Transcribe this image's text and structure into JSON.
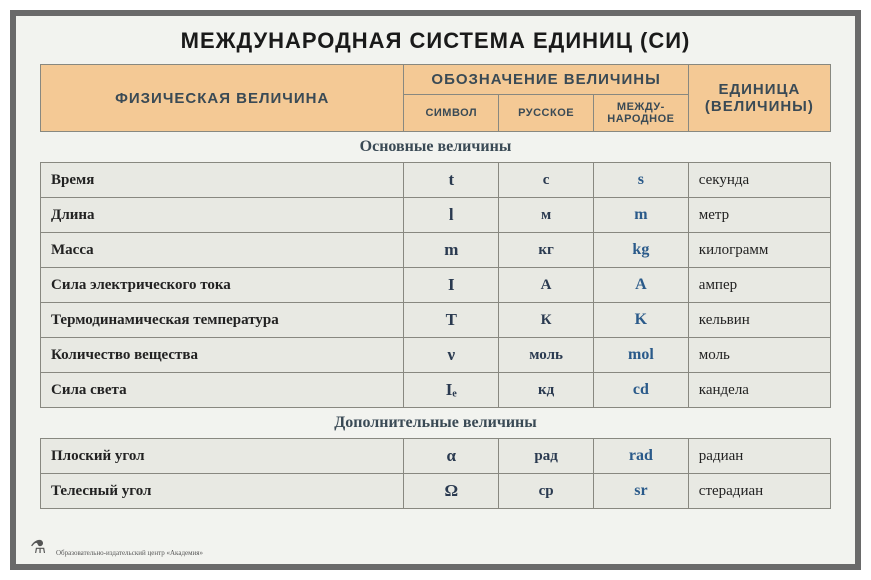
{
  "title": "МЕЖДУНАРОДНАЯ СИСТЕМА ЕДИНИЦ (СИ)",
  "colors": {
    "frame_border": "#6a6a6a",
    "page_bg": "#f2f3ef",
    "header_bg": "#f4c995",
    "header_text": "#3a4a55",
    "cell_border": "#888880",
    "row_bg": "#e8e9e3",
    "symbol_color": "#2a3a50",
    "intl_color": "#2a5a8a",
    "text_color": "#1a1a1a"
  },
  "layout": {
    "type": "table",
    "col_widths_pct": [
      46,
      12,
      12,
      12,
      18
    ],
    "title_fontsize": 22,
    "header_fontsize": 13,
    "section_fontsize": 16,
    "row_fontsize": 15
  },
  "header": {
    "quantity": "ФИЗИЧЕСКАЯ ВЕЛИЧИНА",
    "notation_group": "ОБОЗНАЧЕНИЕ ВЕЛИЧИНЫ",
    "symbol": "СИМВОЛ",
    "russian": "РУССКОЕ",
    "international": "МЕЖДУ-\nНАРОДНОЕ",
    "unit": "ЕДИНИЦА (ВЕЛИЧИНЫ)"
  },
  "sections": {
    "main": "Основные величины",
    "extra": "Дополнительные величины"
  },
  "rows_main": [
    {
      "name": "Время",
      "symbol": "t",
      "ru": "с",
      "intl": "s",
      "unit": "секунда"
    },
    {
      "name": "Длина",
      "symbol": "l",
      "ru": "м",
      "intl": "m",
      "unit": "метр"
    },
    {
      "name": "Масса",
      "symbol": "m",
      "ru": "кг",
      "intl": "kg",
      "unit": "килограмм"
    },
    {
      "name": "Сила электрического тока",
      "symbol": "I",
      "ru": "А",
      "intl": "A",
      "unit": "ампер"
    },
    {
      "name": "Термодинамическая температура",
      "symbol": "T",
      "ru": "К",
      "intl": "K",
      "unit": "кельвин"
    },
    {
      "name": "Количество вещества",
      "symbol": "ν",
      "ru": "моль",
      "intl": "mol",
      "unit": "моль"
    },
    {
      "name": "Сила света",
      "symbol": "Iₑ",
      "ru": "кд",
      "intl": "cd",
      "unit": "кандела"
    }
  ],
  "rows_extra": [
    {
      "name": "Плоский угол",
      "symbol": "α",
      "ru": "рад",
      "intl": "rad",
      "unit": "радиан"
    },
    {
      "name": "Телесный угол",
      "symbol": "Ω",
      "ru": "ср",
      "intl": "sr",
      "unit": "стерадиан"
    }
  ],
  "footer": "Образовательно-издательский центр «Академия»"
}
